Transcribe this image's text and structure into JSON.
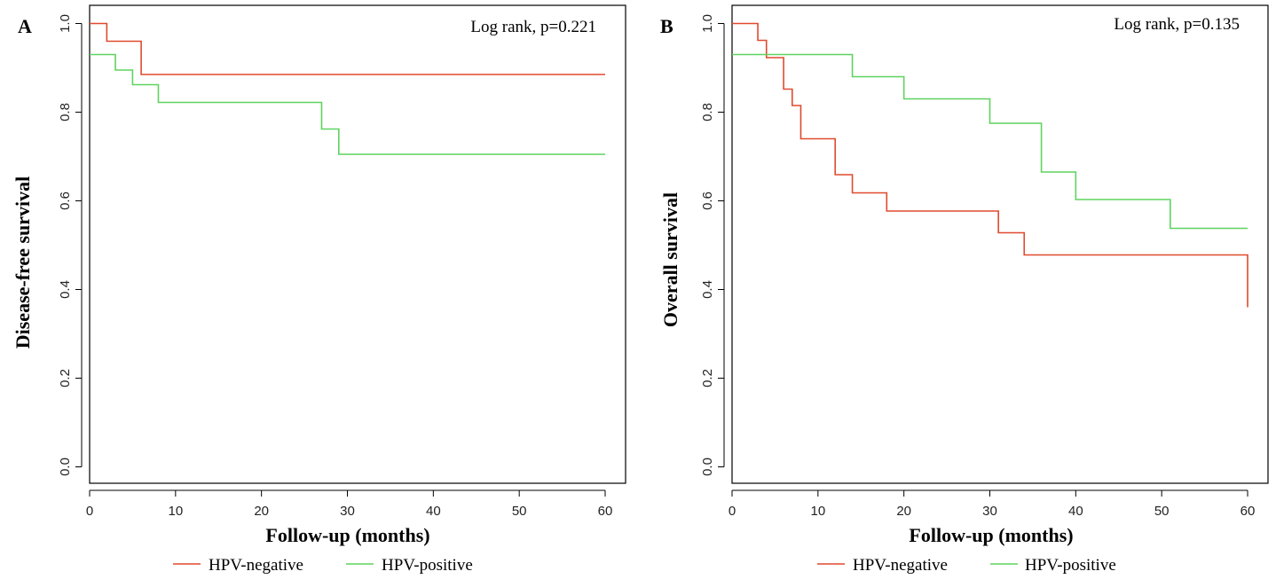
{
  "chart_data": [
    {
      "type": "line",
      "subtype": "kaplan-meier step",
      "panel_label": "A",
      "annotation": "Log rank, p=0.221",
      "xlabel": "Follow-up (months)",
      "ylabel": "Disease-free survival",
      "xlim": [
        0,
        60
      ],
      "ylim": [
        0,
        1
      ],
      "xticks": [
        0,
        10,
        20,
        30,
        40,
        50,
        60
      ],
      "xtick_labels": [
        "0",
        "10",
        "20",
        "30",
        "40",
        "50",
        "60"
      ],
      "yticks": [
        0,
        0.2,
        0.4,
        0.6,
        0.8,
        1
      ],
      "ytick_labels": [
        "0.0",
        "0.2",
        "0.4",
        "0.6",
        "0.8",
        "1.0"
      ],
      "grid": false,
      "legend_position": "bottom",
      "series": [
        {
          "name": "HPV-negative",
          "color": "#e04a2f",
          "x": [
            0,
            2,
            6,
            60
          ],
          "y": [
            1.0,
            0.96,
            0.885,
            0.885
          ]
        },
        {
          "name": "HPV-positive",
          "color": "#5fd35f",
          "x": [
            0,
            3,
            5,
            8,
            27,
            29,
            60
          ],
          "y": [
            0.93,
            0.895,
            0.862,
            0.822,
            0.762,
            0.705,
            0.705
          ]
        }
      ]
    },
    {
      "type": "line",
      "subtype": "kaplan-meier step",
      "panel_label": "B",
      "annotation": "Log rank, p=0.135",
      "xlabel": "Follow-up (months)",
      "ylabel": "Overall survival",
      "xlim": [
        0,
        60
      ],
      "ylim": [
        0,
        1
      ],
      "xticks": [
        0,
        10,
        20,
        30,
        40,
        50,
        60
      ],
      "xtick_labels": [
        "0",
        "10",
        "20",
        "30",
        "40",
        "50",
        "60"
      ],
      "yticks": [
        0,
        0.2,
        0.4,
        0.6,
        0.8,
        1
      ],
      "ytick_labels": [
        "0.0",
        "0.2",
        "0.4",
        "0.6",
        "0.8",
        "1.0"
      ],
      "grid": false,
      "legend_position": "bottom",
      "series": [
        {
          "name": "HPV-negative",
          "color": "#e04a2f",
          "x": [
            0,
            3,
            4,
            6,
            7,
            8,
            12,
            14,
            18,
            31,
            34,
            60
          ],
          "y": [
            1.0,
            0.962,
            0.923,
            0.852,
            0.815,
            0.74,
            0.659,
            0.618,
            0.577,
            0.528,
            0.478,
            0.36
          ]
        },
        {
          "name": "HPV-positive",
          "color": "#5fd35f",
          "x": [
            0,
            14,
            20,
            30,
            36,
            40,
            51,
            60
          ],
          "y": [
            0.93,
            0.88,
            0.83,
            0.775,
            0.665,
            0.603,
            0.538,
            0.538
          ]
        }
      ]
    }
  ]
}
